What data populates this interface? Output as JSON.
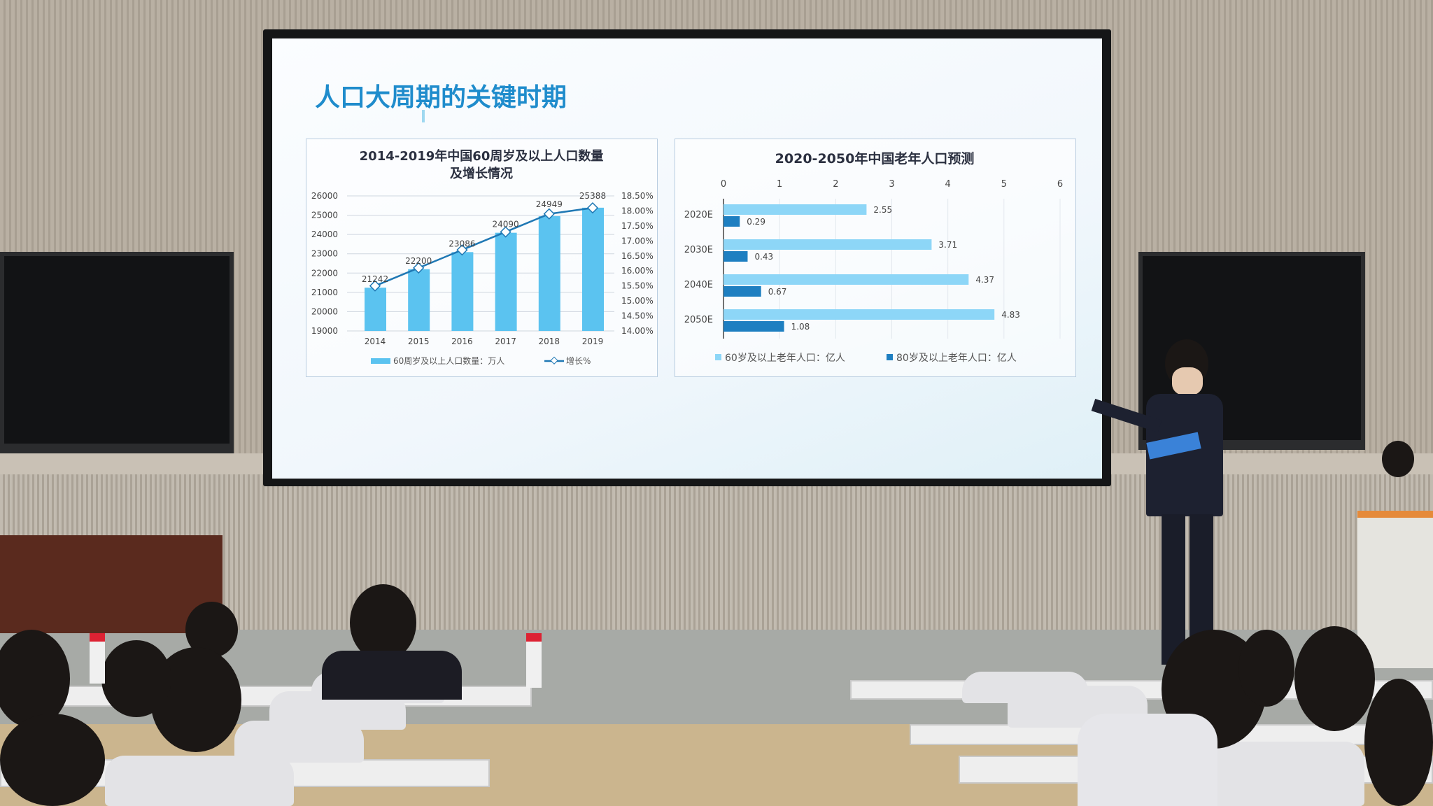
{
  "slide": {
    "title": "人口大周期的关键时期",
    "accent_color": "#1f8ccc"
  },
  "chart_data": [
    {
      "type": "bar+line",
      "title_line1": "2014-2019年中国60周岁及以上人口数量",
      "title_line2": "及增长情况",
      "categories": [
        "2014",
        "2015",
        "2016",
        "2017",
        "2018",
        "2019"
      ],
      "series": [
        {
          "name": "60周岁及以上人口数量：万人",
          "type": "bar",
          "axis": "left",
          "color": "#5bc3f0",
          "values": [
            21242,
            22200,
            23086,
            24090,
            24949,
            25388
          ]
        },
        {
          "name": "增长%",
          "type": "line",
          "axis": "right",
          "color": "#1f78b4",
          "values": [
            15.5,
            16.1,
            16.7,
            17.3,
            17.9,
            18.1
          ]
        }
      ],
      "ylim": [
        19000,
        26000
      ],
      "yticks": [
        "26000",
        "25000",
        "24000",
        "23000",
        "22000",
        "21000",
        "20000",
        "19000"
      ],
      "y2lim": [
        14.0,
        18.5
      ],
      "y2ticks": [
        "18.50%",
        "18.00%",
        "17.50%",
        "17.00%",
        "16.50%",
        "16.00%",
        "15.50%",
        "15.00%",
        "14.50%",
        "14.00%"
      ],
      "grid": true,
      "legend": "bottom"
    },
    {
      "type": "bar",
      "orientation": "horizontal",
      "title": "2020-2050年中国老年人口预测",
      "categories": [
        "2020E",
        "2030E",
        "2040E",
        "2050E"
      ],
      "series": [
        {
          "name": "60岁及以上老年人口：亿人",
          "color": "#8dd6f7",
          "values": [
            2.55,
            3.71,
            4.37,
            4.83
          ]
        },
        {
          "name": "80岁及以上老年人口：亿人",
          "color": "#1e7fc1",
          "values": [
            0.29,
            0.43,
            0.67,
            1.08
          ]
        }
      ],
      "xlim": [
        0,
        6
      ],
      "xticks": [
        "0",
        "1",
        "2",
        "3",
        "4",
        "5",
        "6"
      ],
      "grid": true,
      "legend": "bottom"
    }
  ]
}
